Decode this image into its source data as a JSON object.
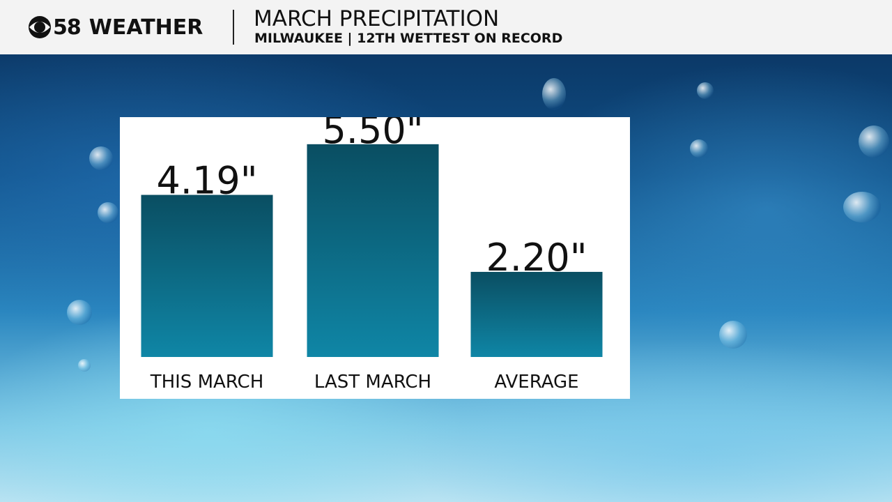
{
  "header": {
    "logo_number": "58",
    "logo_word": "WEATHER",
    "title": "MARCH PRECIPITATION",
    "subtitle": "MILWAUKEE | 12TH WETTEST ON RECORD"
  },
  "colors": {
    "bar_top": "#0a4e62",
    "bar_bottom": "#0f86a6",
    "panel": "#ffffff"
  },
  "icons": {
    "logo": "cbs-eye-icon"
  },
  "chart_data": {
    "type": "bar",
    "categories": [
      "THIS MARCH",
      "LAST MARCH",
      "AVERAGE"
    ],
    "values": [
      4.19,
      5.5,
      2.2
    ],
    "value_labels": [
      "4.19\"",
      "5.50\"",
      "2.20\""
    ],
    "title": "MARCH PRECIPITATION",
    "xlabel": "",
    "ylabel": "",
    "ylim": [
      0,
      6.2
    ],
    "grid": false,
    "legend": "none"
  }
}
